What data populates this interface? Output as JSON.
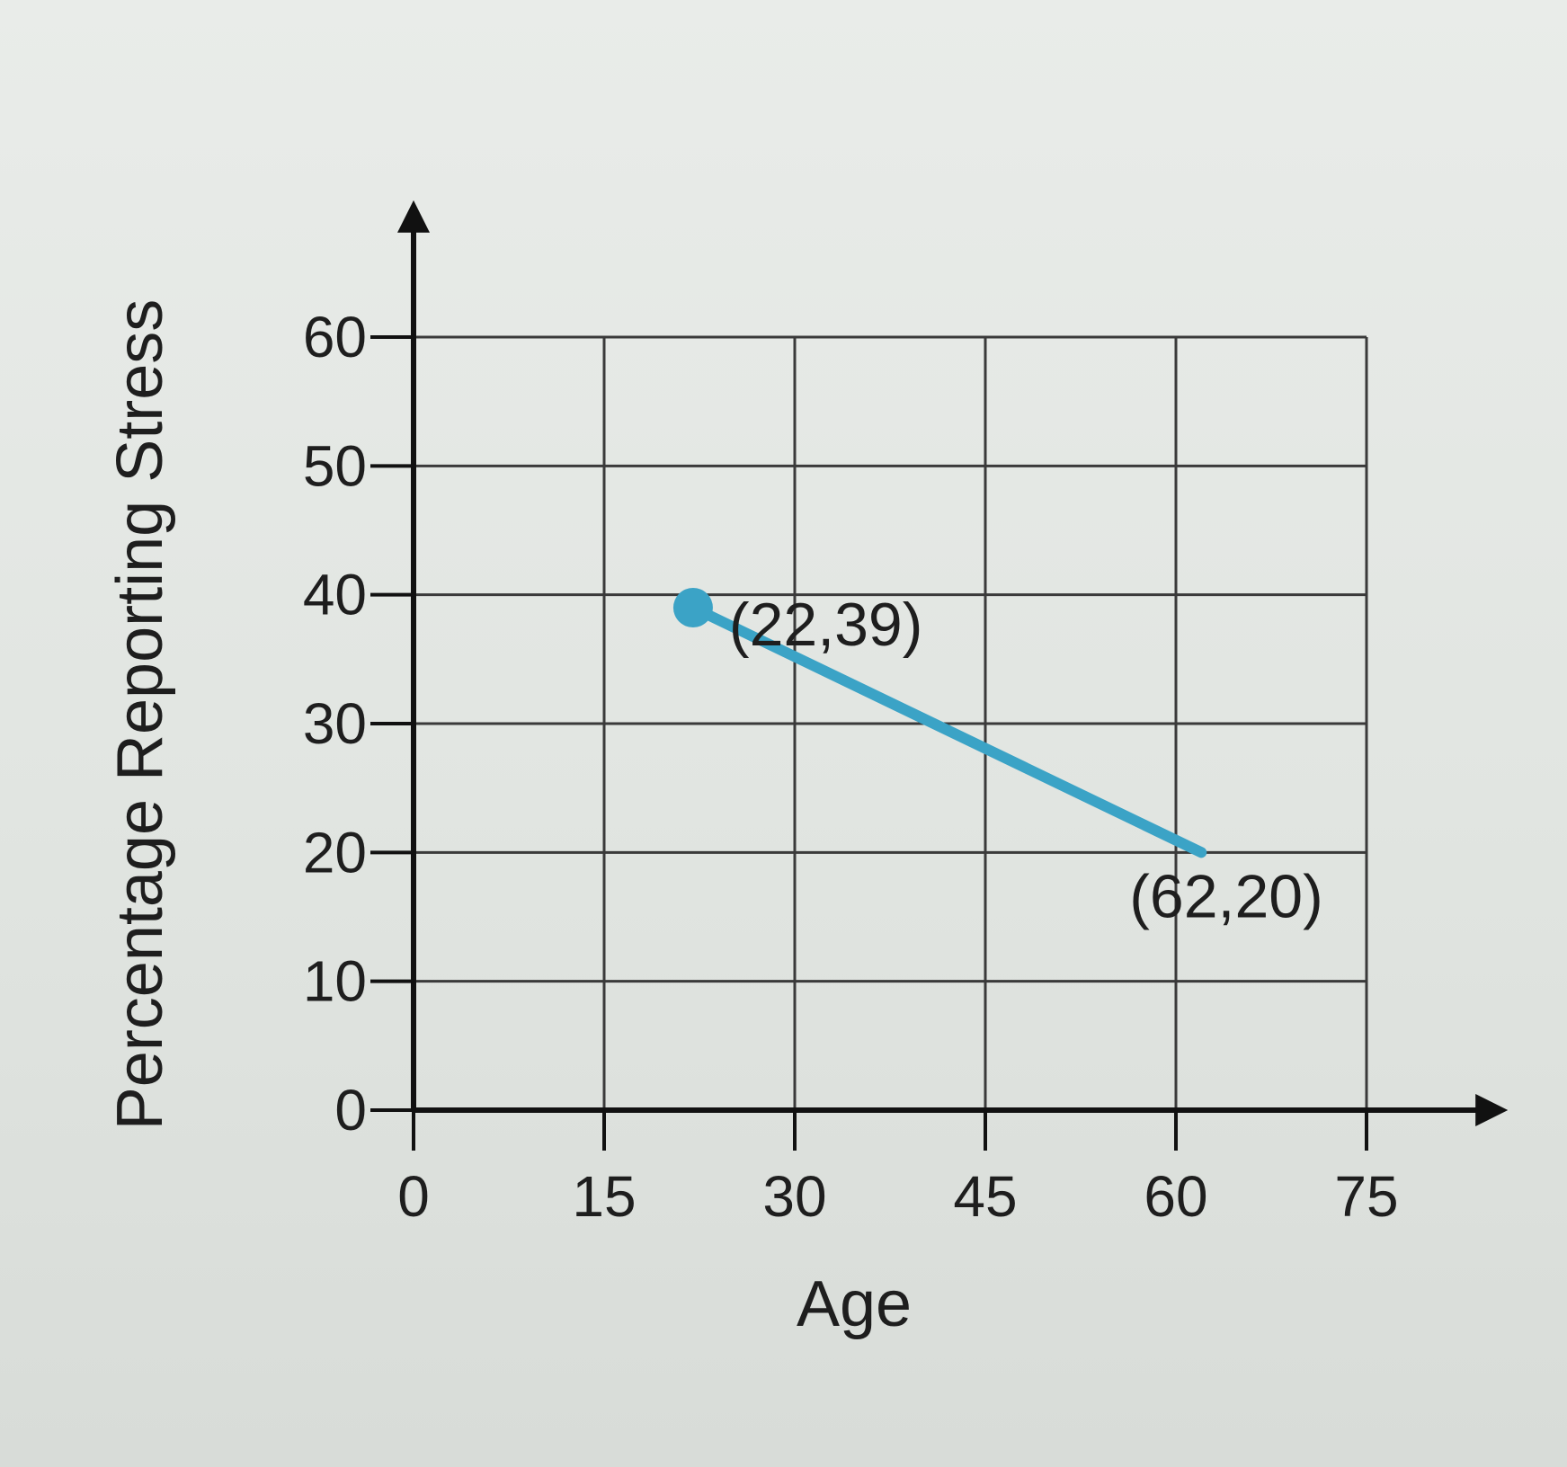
{
  "chart_data": {
    "type": "line",
    "xlabel": "Age",
    "ylabel": "Percentage Reporting Stress",
    "xlim": [
      0,
      75
    ],
    "ylim": [
      0,
      60
    ],
    "x_ticks": [
      0,
      15,
      30,
      45,
      60,
      75
    ],
    "y_ticks": [
      0,
      10,
      20,
      30,
      40,
      50,
      60
    ],
    "grid": true,
    "series": [
      {
        "color": "#3ba3c6",
        "points": [
          {
            "x": 22,
            "y": 39,
            "label": "(22,39)"
          },
          {
            "x": 62,
            "y": 20,
            "label": "(62,20)"
          }
        ]
      }
    ],
    "axis_color": "#111111",
    "grid_color": "#3a3a3a"
  }
}
